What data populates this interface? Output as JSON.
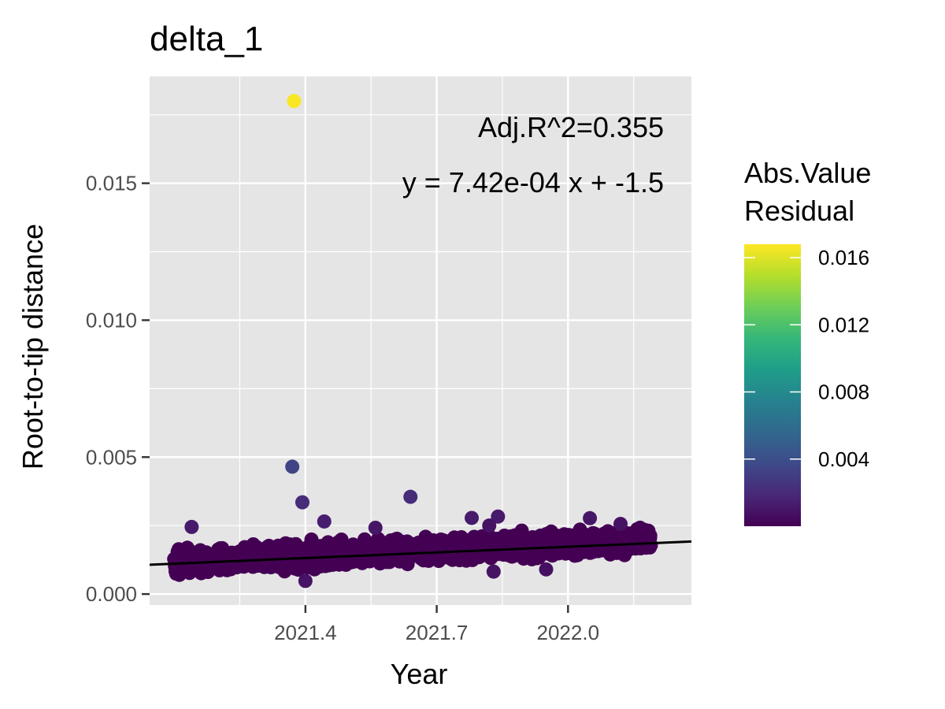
{
  "chart_data": {
    "type": "scatter",
    "title": "delta_1",
    "xlabel": "Year",
    "ylabel": "Root-to-tip distance",
    "xlim": [
      2021.044,
      2022.282
    ],
    "ylim": [
      -0.0004,
      0.0189
    ],
    "x_ticks": [
      2021.4,
      2021.7,
      2022.0
    ],
    "x_tick_labels": [
      "2021.4",
      "2021.7",
      "2022.0"
    ],
    "y_ticks": [
      0.0,
      0.005,
      0.01,
      0.015
    ],
    "y_tick_labels": [
      "0.000",
      "0.005",
      "0.010",
      "0.015"
    ],
    "grid": true,
    "background": "#e5e5e5",
    "annotations": [
      "Adj.R^2=0.355",
      "y = 7.42e-04 x + -1.5"
    ],
    "regression": {
      "slope": 0.000742,
      "intercept": -1.5,
      "x_range": [
        2021.044,
        2022.282
      ],
      "y_range": [
        0.00107,
        0.00192
      ],
      "color": "#000000"
    },
    "colorscale": {
      "name": "viridis",
      "title": [
        "Abs.Value",
        "Residual"
      ],
      "range": [
        0.0,
        0.0168
      ],
      "ticks": [
        0.004,
        0.008,
        0.012,
        0.016
      ],
      "tick_labels": [
        "0.004",
        "0.008",
        "0.012",
        "0.016"
      ],
      "colors": [
        "#440154",
        "#482878",
        "#3e4a89",
        "#31688e",
        "#26828e",
        "#1f9e89",
        "#35b779",
        "#6ece58",
        "#b5de2b",
        "#fde725"
      ]
    },
    "point_cloud": {
      "x_range": [
        2021.1,
        2022.19
      ],
      "y_baseline_at_x_min": 0.00117,
      "y_baseline_slope": 0.000742,
      "y_spread": 0.0004,
      "approx_count": 1500,
      "color": "#440154"
    },
    "points": [
      {
        "x": 2021.374,
        "y": 0.018,
        "residual": 0.0167
      },
      {
        "x": 2021.37,
        "y": 0.00465,
        "residual": 0.0034
      },
      {
        "x": 2021.393,
        "y": 0.00335,
        "residual": 0.0021
      },
      {
        "x": 2021.64,
        "y": 0.00355,
        "residual": 0.0021
      },
      {
        "x": 2021.443,
        "y": 0.00265,
        "residual": 0.0014
      },
      {
        "x": 2021.78,
        "y": 0.00278,
        "residual": 0.0012
      },
      {
        "x": 2021.84,
        "y": 0.00283,
        "residual": 0.0012
      },
      {
        "x": 2021.14,
        "y": 0.00245,
        "residual": 0.0012
      },
      {
        "x": 2021.56,
        "y": 0.00242,
        "residual": 0.001
      },
      {
        "x": 2022.05,
        "y": 0.00277,
        "residual": 0.001
      },
      {
        "x": 2022.12,
        "y": 0.00256,
        "residual": 0.0008
      },
      {
        "x": 2021.82,
        "y": 0.0025,
        "residual": 0.0008
      },
      {
        "x": 2021.4,
        "y": 0.00048,
        "residual": 0.0008
      },
      {
        "x": 2021.83,
        "y": 0.00082,
        "residual": 0.0008
      },
      {
        "x": 2021.95,
        "y": 0.0009,
        "residual": 0.0007
      }
    ]
  }
}
